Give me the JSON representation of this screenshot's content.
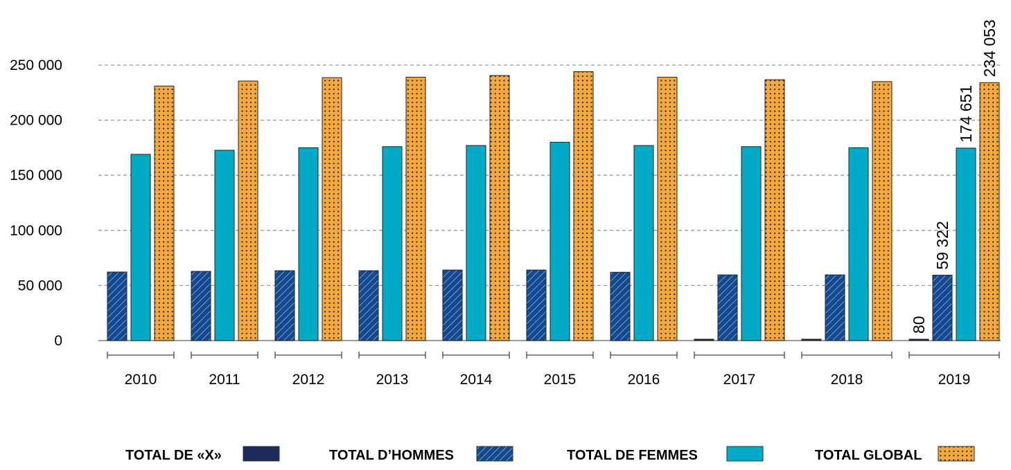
{
  "chart_data": {
    "type": "bar",
    "title": "",
    "xlabel": "",
    "ylabel": "",
    "ylim": [
      0,
      250000
    ],
    "yticks": [
      0,
      50000,
      100000,
      150000,
      200000,
      250000
    ],
    "ytick_labels": [
      "0",
      "50 000",
      "100 000",
      "150 000",
      "200 000",
      "250 000"
    ],
    "grid": true,
    "legend_placement": "bottom",
    "categories": [
      "2010",
      "2011",
      "2012",
      "2013",
      "2014",
      "2015",
      "2016",
      "2017",
      "2018",
      "2019"
    ],
    "series": [
      {
        "name": "TOTAL DE «X»",
        "color": "#1c2a5c",
        "pattern": "solid",
        "values": [
          null,
          null,
          null,
          null,
          null,
          null,
          null,
          100,
          100,
          80
        ]
      },
      {
        "name": "TOTAL D’HOMMES",
        "color": "#12498f",
        "pattern": "diagonal-hatch",
        "values": [
          62200,
          62800,
          63400,
          63400,
          64000,
          64000,
          62000,
          59600,
          59600,
          59322
        ]
      },
      {
        "name": "TOTAL DE FEMMES",
        "color": "#00abc8",
        "pattern": "solid",
        "values": [
          169000,
          172700,
          175000,
          176000,
          177000,
          180000,
          177000,
          176000,
          175000,
          174651
        ]
      },
      {
        "name": "TOTAL GLOBAL",
        "color": "#f6a93b",
        "pattern": "dotted",
        "values": [
          231000,
          235500,
          238600,
          239000,
          240500,
          244000,
          239000,
          236700,
          235000,
          234053
        ]
      }
    ],
    "data_labels": [
      {
        "category": "2019",
        "series": "TOTAL DE «X»",
        "text": "80"
      },
      {
        "category": "2019",
        "series": "TOTAL D’HOMMES",
        "text": "59 322"
      },
      {
        "category": "2019",
        "series": "TOTAL DE FEMMES",
        "text": "174 651"
      },
      {
        "category": "2019",
        "series": "TOTAL GLOBAL",
        "text": "234 053"
      }
    ]
  }
}
